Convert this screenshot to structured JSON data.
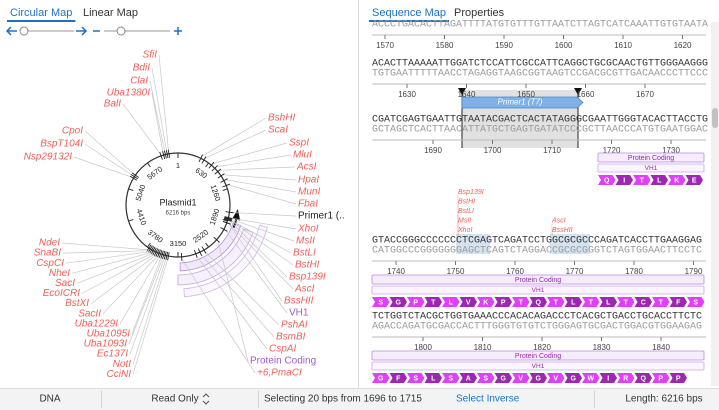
{
  "left_tabs": [
    "Circular Map",
    "Linear Map"
  ],
  "right_tabs": [
    "Sequence Map",
    "Properties"
  ],
  "circular_map": {
    "name": "Plasmid1",
    "length": "6216 bps",
    "ticks": [
      1,
      630,
      1260,
      1890,
      2520,
      3150,
      3780,
      4410,
      5040,
      5670
    ],
    "enzyme_color": "#f0605a",
    "labels": [
      "SfiI",
      "BdiI",
      "ClaI",
      "Uba1380I",
      "BalI",
      "CpoI",
      "BspT104I",
      "Nsp29132I",
      "NdeI",
      "SnaBI",
      "CspCI",
      "NheI",
      "SacI",
      "EcoICRI",
      "BstXI",
      "SacII",
      "Uba1229I",
      "Uba1095I",
      "Uba1093I",
      "Ec137I",
      "NotI",
      "CciNI",
      "BshHI",
      "ScaI",
      "SspI",
      "MluI",
      "AcsI",
      "HpaI",
      "MunI",
      "FbaI",
      {
        "text": "Primer1 (..",
        "color": "#222222"
      },
      "XhoI",
      "MsII",
      "BstLI",
      "BstHI",
      "Bsp139I",
      "AscI",
      "BssHII",
      {
        "text": "VH1",
        "color": "#a05ad0"
      },
      "PshAI",
      "BsmBI",
      "CspAI",
      {
        "text": "Protein Coding",
        "color": "#a05ad0"
      },
      "+6,PmaCI"
    ]
  },
  "sequence_map": {
    "rows": [
      {
        "strands": [
          "ACCCTGACACTTAGATTTTATGTGTTTGTTAATCTTAGTCATCAAATTGTGTAATA"
        ],
        "ticks": [
          1570,
          1580,
          1590,
          1600,
          1610,
          1620
        ]
      },
      {
        "strands": [
          "ACACTTAAAAATTGGATCTCCATTCGCCATTCAGGCTGCGCAACTGTTGGGAAGGG",
          "TGTGAATTTTTAACCTAGAGGTAAGCGGTAAGTCCGACGCGTTGACAACCCTTCCC"
        ],
        "ticks": [
          1630,
          1640,
          1650,
          1660,
          1670
        ]
      },
      {
        "strands": [
          "CGATCGAGTGAATTGTAATACGACTCACTATAGGGCGAATTGGGTACACTTACCTG",
          "GCTAGCTCACTTAACATTATGCTGAGTGATATCCCGCTTAACCCATGTGAATGGAC"
        ],
        "ticks": [
          1690,
          1700,
          1710,
          1720,
          1730
        ]
      },
      {
        "strands": [
          "GTACCGGGCCCCCCCTCGAGTCAGATCCTGGCGCGCCCAGATCACCTTGAAGGAG",
          "CATGGCCCGGGGGGGAGCTCAGTCTAGGACCGCGCGGGTCTAGTGGAACTTCCTC"
        ],
        "ticks": [
          1740,
          1750,
          1760,
          1770,
          1780,
          1790
        ]
      },
      {
        "strands": [
          "TCTGGTCTACGCTGGTGAAACCCACACAGACCCTCACGCTGACCTGCACCTTCTC",
          "AGACCAGATGCGACCACTTTGGGTGTGTCTGGGAGTGCGACTGGACGTGGAAGAG"
        ],
        "ticks": [
          1800,
          1810,
          1820,
          1830,
          1840
        ]
      }
    ],
    "primer": "Primer1 (T7)",
    "cut_labels": [
      [
        "Bsp139I",
        "BstHI",
        "BstLI",
        "MsII",
        "XhoI"
      ],
      [
        "AscI",
        "BssHII"
      ]
    ],
    "aa_colors": [
      "#e040fb",
      "#9c27b0"
    ],
    "features": [
      {
        "name": "Protein Coding",
        "sub": "VH1",
        "aa": [
          "Q",
          "I",
          "T",
          "L",
          "K",
          "E"
        ]
      },
      {
        "name": "Protein Coding",
        "sub": "VH1",
        "aa": [
          "S",
          "G",
          "P",
          "T",
          "L",
          "V",
          "K",
          "P",
          "T",
          "Q",
          "T",
          "L",
          "T",
          "L",
          "T",
          "C",
          "T",
          "F",
          "S"
        ]
      },
      {
        "name": "Protein Coding",
        "sub": "VH1",
        "aa": [
          "G",
          "F",
          "S",
          "L",
          "S",
          "A",
          "S",
          "G",
          "V",
          "G",
          "V",
          "G",
          "W",
          "I",
          "R",
          "Q",
          "P",
          "P"
        ]
      }
    ]
  },
  "status_bar": {
    "type": "DNA",
    "mode": "Read Only",
    "selection": "Selecting 20 bps from 1696 to 1715",
    "action": "Select Inverse",
    "length": "Length: 6216 bps"
  }
}
